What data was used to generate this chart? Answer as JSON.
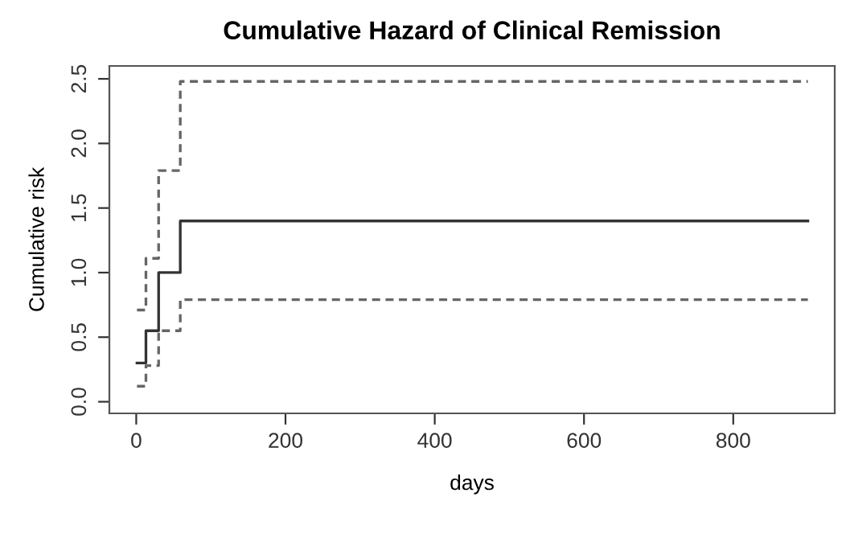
{
  "chart_data": {
    "type": "step",
    "title": "Cumulative Hazard of Clinical Remission",
    "xlabel": "days",
    "ylabel": "Cumulative risk",
    "x": [
      1,
      13,
      30,
      59,
      900
    ],
    "series": [
      {
        "color": "#333333",
        "line_style": "solid",
        "values": [
          0.3,
          0.55,
          1.0,
          1.4,
          1.4
        ]
      },
      {
        "color": "#666666",
        "line_style": "dashed",
        "values": [
          0.12,
          0.28,
          0.55,
          0.79,
          0.79
        ]
      },
      {
        "color": "#666666",
        "line_style": "dashed",
        "values": [
          0.71,
          1.11,
          1.79,
          2.48,
          2.48
        ]
      }
    ],
    "xlim": [
      -36,
      936
    ],
    "ylim": [
      -0.09,
      2.6
    ],
    "xticks": [
      0,
      200,
      400,
      600,
      800
    ],
    "yticks": [
      {
        "value": 0,
        "label": "0.0"
      },
      {
        "value": 0.5,
        "label": "0.5"
      },
      {
        "value": 1,
        "label": "1.0"
      },
      {
        "value": 1.5,
        "label": "1.5"
      },
      {
        "value": 2,
        "label": "2.0"
      },
      {
        "value": 2.5,
        "label": "2.5"
      }
    ],
    "grid": false,
    "legend": false
  }
}
